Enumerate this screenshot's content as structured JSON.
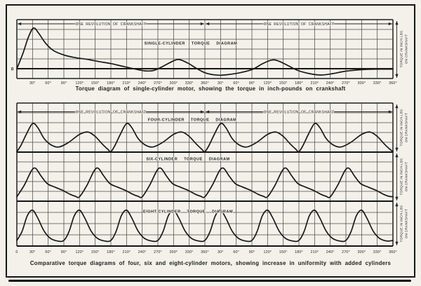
{
  "page": {
    "description": "Scanned book figure of engine torque diagrams",
    "ink_color": "#1f1f1f",
    "paper_color": "#f3f1ea"
  },
  "captions": {
    "single": "Torque diagram of single-cylinder motor, showing the torque in inch-pounds on crankshaft",
    "comparative": "Comparative torque diagrams of four, six and eight-cylinder motors, showing increase in uniformity with added cylinders"
  },
  "labels": {
    "revolution_span": "ONE REVOLUTION OF CRANKSHAFT",
    "torque_axis_line1": "TORQUE IN INCH-LBS",
    "torque_axis_line2": "ON CRANKSHAFT",
    "origin_zero": "0"
  },
  "axis": {
    "top_chart_ticks": [
      "30°",
      "60°",
      "90°",
      "120°",
      "150°",
      "180°",
      "210°",
      "240°",
      "270°",
      "300°",
      "330°",
      "360°",
      "30°",
      "60°",
      "90°",
      "120°",
      "150°",
      "180°",
      "210°",
      "240°",
      "270°",
      "300°",
      "330°",
      "360°"
    ],
    "bottom_chart_ticks": [
      "0",
      "30°",
      "60°",
      "90°",
      "120°",
      "150°",
      "180°",
      "210°",
      "240°",
      "270°",
      "300°",
      "330°",
      "360°",
      "30°",
      "60°",
      "90°",
      "120°",
      "150°",
      "180°",
      "210°",
      "240°",
      "270°",
      "300°",
      "330°",
      "360°"
    ]
  },
  "chart_data": [
    {
      "type": "line",
      "title": "SINGLE-CYLINDER TORQUE DIAGRAM",
      "ylabel": "TORQUE IN INCH-LBS ON CRANKSHAFT",
      "x_range": [
        0,
        720
      ],
      "x_tick_step_degrees": 30,
      "revolutions_shown": 2,
      "ylim_cells": [
        -1,
        5
      ],
      "grid": true,
      "points": [
        [
          0,
          0
        ],
        [
          12,
          1.6
        ],
        [
          22,
          3.2
        ],
        [
          32,
          4.15
        ],
        [
          42,
          3.6
        ],
        [
          55,
          2.6
        ],
        [
          70,
          1.85
        ],
        [
          90,
          1.4
        ],
        [
          110,
          1.15
        ],
        [
          135,
          0.95
        ],
        [
          160,
          0.7
        ],
        [
          180,
          0.52
        ],
        [
          205,
          0.22
        ],
        [
          225,
          -0.02
        ],
        [
          245,
          -0.22
        ],
        [
          262,
          -0.18
        ],
        [
          280,
          0.25
        ],
        [
          300,
          0.8
        ],
        [
          312,
          0.92
        ],
        [
          328,
          0.55
        ],
        [
          345,
          0
        ],
        [
          362,
          -0.45
        ],
        [
          385,
          -0.66
        ],
        [
          405,
          -0.6
        ],
        [
          430,
          -0.38
        ],
        [
          452,
          -0.05
        ],
        [
          470,
          0.5
        ],
        [
          488,
          0.88
        ],
        [
          500,
          0.8
        ],
        [
          518,
          0.35
        ],
        [
          538,
          -0.18
        ],
        [
          560,
          -0.5
        ],
        [
          582,
          -0.64
        ],
        [
          605,
          -0.5
        ],
        [
          630,
          -0.25
        ],
        [
          660,
          -0.1
        ],
        [
          690,
          -0.05
        ],
        [
          720,
          -0.04
        ]
      ]
    },
    {
      "type": "line",
      "title": "FOUR-CYLINDER TORQUE DIAGRAM",
      "ylabel": "TORQUE IN INCH-LBS ON CRANKSHAFT",
      "x_range": [
        0,
        720
      ],
      "x_tick_step_degrees": 30,
      "revolutions_shown": 2,
      "ylim_cells": [
        0,
        5
      ],
      "grid": true,
      "period_degrees": 180,
      "repeats": 4,
      "pattern": [
        [
          0,
          0.05
        ],
        [
          8,
          0.7
        ],
        [
          18,
          1.8
        ],
        [
          30,
          2.9
        ],
        [
          40,
          2.5
        ],
        [
          52,
          1.4
        ],
        [
          65,
          0.75
        ],
        [
          80,
          0.52
        ],
        [
          98,
          0.95
        ],
        [
          120,
          1.8
        ],
        [
          136,
          2.05
        ],
        [
          150,
          1.6
        ],
        [
          164,
          0.8
        ],
        [
          174,
          0.3
        ],
        [
          180,
          0.05
        ]
      ]
    },
    {
      "type": "line",
      "title": "SIX-CYLINDER TORQUE DIAGRAM",
      "ylabel": "TORQUE IN INCH-LBS ON CRANKSHAFT",
      "x_range": [
        0,
        720
      ],
      "x_tick_step_degrees": 30,
      "revolutions_shown": 2,
      "ylim_cells": [
        0,
        5
      ],
      "grid": true,
      "period_degrees": 120,
      "repeats": 6,
      "pattern": [
        [
          0,
          0.45
        ],
        [
          14,
          1.6
        ],
        [
          28,
          3.1
        ],
        [
          36,
          3.35
        ],
        [
          46,
          2.6
        ],
        [
          58,
          1.8
        ],
        [
          72,
          1.45
        ],
        [
          88,
          1.1
        ],
        [
          102,
          0.7
        ],
        [
          112,
          0.5
        ],
        [
          120,
          0.45
        ]
      ]
    },
    {
      "type": "line",
      "title": "EIGHT-CYLINDER TORQUE DIAGRAM",
      "ylabel": "TORQUE IN INCH-LBS ON CRANKSHAFT",
      "x_range": [
        0,
        720
      ],
      "x_tick_step_degrees": 30,
      "revolutions_shown": 2,
      "ylim_cells": [
        0,
        4
      ],
      "grid": true,
      "period_degrees": 90,
      "repeats": 8,
      "pattern": [
        [
          0,
          0.5
        ],
        [
          10,
          1.3
        ],
        [
          20,
          2.7
        ],
        [
          30,
          3.2
        ],
        [
          40,
          2.5
        ],
        [
          52,
          1.35
        ],
        [
          64,
          0.7
        ],
        [
          78,
          0.45
        ],
        [
          90,
          0.5
        ]
      ]
    }
  ]
}
